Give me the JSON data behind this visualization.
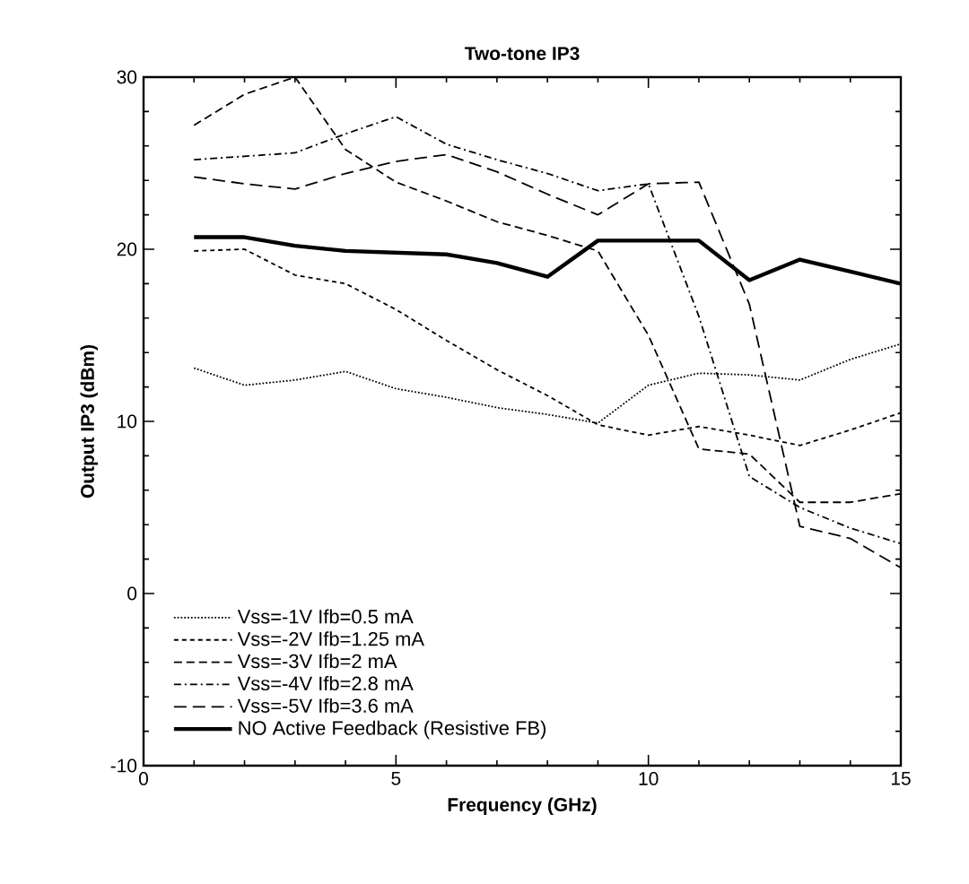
{
  "chart_data": {
    "type": "line",
    "title": "Two-tone  IP3",
    "xlabel": "Frequency  (GHz)",
    "ylabel": "Output  IP3  (dBm)",
    "x": [
      1,
      2,
      3,
      4,
      5,
      6,
      7,
      8,
      9,
      10,
      11,
      12,
      13,
      14,
      15
    ],
    "series": [
      {
        "name": "Vss=-1V Ifb=0.5 mA",
        "color": "#000000",
        "line_style": "dotted",
        "values": [
          13.1,
          12.1,
          12.4,
          12.9,
          11.9,
          11.4,
          10.8,
          10.4,
          9.9,
          12.1,
          12.8,
          12.7,
          12.4,
          13.6,
          14.5
        ]
      },
      {
        "name": "Vss=-2V Ifb=1.25 mA",
        "color": "#000000",
        "line_style": "densely dashed",
        "values": [
          19.9,
          20.0,
          18.5,
          18.0,
          16.5,
          14.7,
          13.0,
          11.5,
          9.8,
          9.2,
          9.7,
          9.2,
          8.6,
          9.5,
          10.5
        ]
      },
      {
        "name": "Vss=-3V Ifb=2 mA",
        "color": "#000000",
        "line_style": "dashed",
        "values": [
          27.2,
          29.0,
          30.0,
          25.8,
          23.9,
          22.8,
          21.6,
          20.8,
          19.9,
          15.0,
          8.4,
          8.1,
          5.3,
          5.3,
          5.8
        ]
      },
      {
        "name": "Vss=-4V Ifb=2.8 mA",
        "color": "#000000",
        "line_style": "dashdot",
        "values": [
          25.2,
          25.4,
          25.6,
          26.7,
          27.7,
          26.1,
          25.2,
          24.4,
          23.4,
          23.8,
          16.1,
          6.8,
          5.0,
          3.8,
          2.9
        ]
      },
      {
        "name": "Vss=-5V Ifb=3.6 mA",
        "color": "#000000",
        "line_style": "loosely dashed",
        "values": [
          24.2,
          23.8,
          23.5,
          24.4,
          25.1,
          25.5,
          24.5,
          23.2,
          22.0,
          23.8,
          23.9,
          16.8,
          3.9,
          3.2,
          1.5
        ]
      },
      {
        "name": "NO Active Feedback  (Resistive FB)",
        "color": "#000000",
        "line_style": "solid",
        "values": [
          20.7,
          20.7,
          20.2,
          19.9,
          19.8,
          19.7,
          19.2,
          18.4,
          20.5,
          20.5,
          20.5,
          18.2,
          19.4,
          18.7,
          18.0
        ]
      }
    ],
    "xlim": [
      0,
      15
    ],
    "xticks": [
      0,
      5,
      10,
      15
    ],
    "ylim": [
      -10,
      30
    ],
    "yticks": [
      -10,
      0,
      10,
      20,
      30
    ],
    "grid": false,
    "legend": "bottom left",
    "marker": "none"
  }
}
